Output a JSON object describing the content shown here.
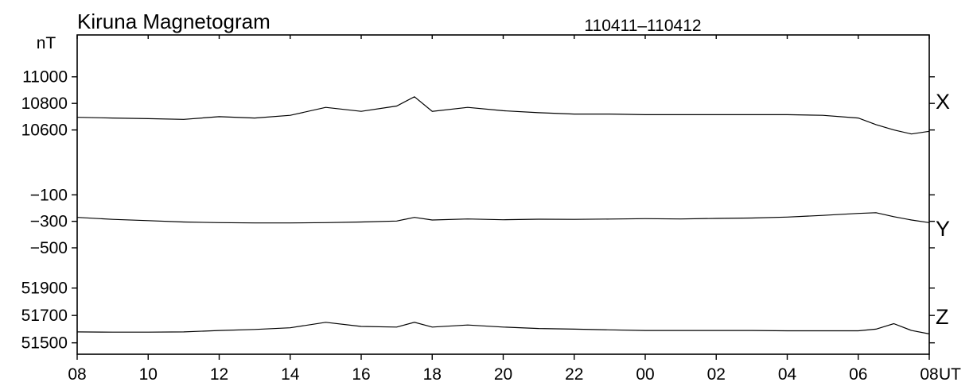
{
  "chart_data": {
    "type": "line",
    "title": "Kiruna Magnetogram",
    "date_range": "110411–110412",
    "yunit": "nT",
    "xunit": "UT",
    "x_tick_labels": [
      "08",
      "10",
      "12",
      "14",
      "16",
      "18",
      "20",
      "22",
      "00",
      "02",
      "04",
      "06",
      "08"
    ],
    "x": [
      "08",
      "09",
      "10",
      "11",
      "12",
      "13",
      "14",
      "15",
      "16",
      "17",
      "17.5",
      "18",
      "19",
      "20",
      "21",
      "22",
      "23",
      "00",
      "01",
      "02",
      "03",
      "04",
      "05",
      "06",
      "06.5",
      "07",
      "07.5",
      "08"
    ],
    "panels": [
      {
        "name": "X",
        "ylim": [
          10550,
          11100
        ],
        "y_tick_values": [
          10600,
          10800,
          11000
        ],
        "y_tick_labels": [
          "10600",
          "10800",
          "11000"
        ],
        "values": [
          10695,
          10690,
          10685,
          10680,
          10700,
          10690,
          10710,
          10770,
          10740,
          10780,
          10850,
          10740,
          10770,
          10745,
          10730,
          10720,
          10720,
          10715,
          10715,
          10715,
          10715,
          10715,
          10710,
          10690,
          10640,
          10600,
          10570,
          10590
        ]
      },
      {
        "name": "Y",
        "ylim": [
          -620,
          -20
        ],
        "y_tick_values": [
          -500,
          -300,
          -100
        ],
        "y_tick_labels": [
          "−500",
          "−300",
          "−100"
        ],
        "values": [
          -270,
          -285,
          -295,
          -305,
          -310,
          -312,
          -312,
          -310,
          -305,
          -298,
          -270,
          -290,
          -282,
          -288,
          -284,
          -285,
          -283,
          -280,
          -282,
          -278,
          -275,
          -268,
          -255,
          -240,
          -235,
          -265,
          -290,
          -310
        ]
      },
      {
        "name": "Z",
        "ylim": [
          51440,
          52020
        ],
        "y_tick_values": [
          51500,
          51700,
          51900
        ],
        "y_tick_labels": [
          "51500",
          "51700",
          "51900"
        ],
        "values": [
          51580,
          51578,
          51578,
          51580,
          51590,
          51598,
          51610,
          51650,
          51620,
          51615,
          51650,
          51615,
          51630,
          51615,
          51605,
          51600,
          51595,
          51590,
          51590,
          51590,
          51590,
          51588,
          51588,
          51588,
          51600,
          51640,
          51590,
          51565
        ]
      }
    ],
    "grid": false,
    "legend": "none"
  },
  "colors": {
    "line": "#000000",
    "background": "#ffffff"
  }
}
